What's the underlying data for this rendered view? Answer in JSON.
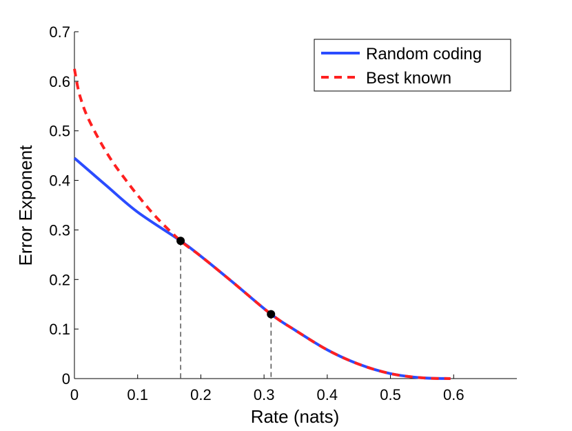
{
  "chart_data": {
    "type": "line",
    "title": "",
    "xlabel": "Rate (nats)",
    "ylabel": "Error Exponent",
    "xlim": [
      0,
      0.7
    ],
    "ylim": [
      0,
      0.7
    ],
    "xticks": [
      0,
      0.1,
      0.2,
      0.3,
      0.4,
      0.5,
      0.6
    ],
    "xtick_labels": [
      "0",
      "0.1",
      "0.2",
      "0.3",
      "0.4",
      "0.5",
      "0.6"
    ],
    "yticks": [
      0,
      0.1,
      0.2,
      0.3,
      0.4,
      0.5,
      0.6,
      0.7
    ],
    "ytick_labels": [
      "0",
      "0.1",
      "0.2",
      "0.3",
      "0.4",
      "0.5",
      "0.6",
      "0.7"
    ],
    "grid": false,
    "legend_position": "top-right",
    "series": [
      {
        "name": "Random coding",
        "color": "#2b4cff",
        "style": "solid",
        "x": [
          0,
          0.05,
          0.1,
          0.168,
          0.2,
          0.25,
          0.311,
          0.35,
          0.4,
          0.45,
          0.5,
          0.55,
          0.595
        ],
        "y": [
          0.445,
          0.39,
          0.336,
          0.278,
          0.247,
          0.195,
          0.13,
          0.097,
          0.058,
          0.029,
          0.01,
          0.0015,
          0
        ]
      },
      {
        "name": "Best known",
        "color": "#ff2020",
        "style": "dashed",
        "x": [
          0,
          0.005,
          0.01,
          0.02,
          0.04,
          0.06,
          0.08,
          0.1,
          0.13,
          0.168,
          0.2,
          0.25,
          0.311,
          0.35,
          0.4,
          0.45,
          0.5,
          0.55,
          0.595
        ],
        "y": [
          0.625,
          0.59,
          0.565,
          0.53,
          0.48,
          0.438,
          0.403,
          0.37,
          0.325,
          0.278,
          0.247,
          0.195,
          0.13,
          0.097,
          0.058,
          0.029,
          0.01,
          0.0015,
          0
        ]
      }
    ],
    "markers": [
      {
        "x": 0.168,
        "y": 0.278
      },
      {
        "x": 0.311,
        "y": 0.13
      }
    ]
  }
}
